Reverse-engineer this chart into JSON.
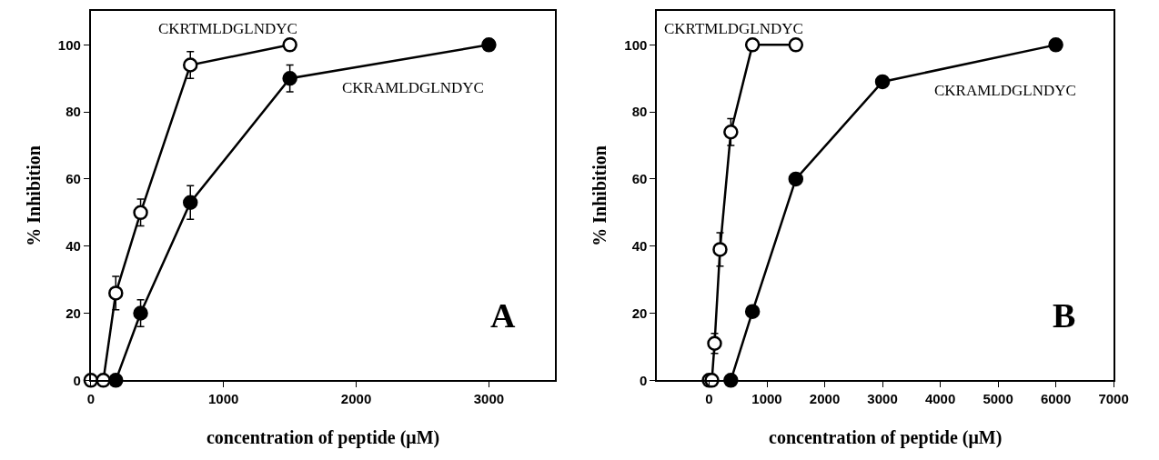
{
  "chart_data": [
    {
      "type": "line",
      "xlabel": "concentration of peptide (μM)",
      "ylabel": "% Inhibition",
      "xlim": [
        0,
        3500
      ],
      "xticks": [
        0,
        1000,
        2000,
        3000
      ],
      "ylim": [
        0,
        110
      ],
      "yticks": [
        0,
        20,
        40,
        60,
        80,
        100
      ],
      "legend": false,
      "marker": "circle",
      "annotations": [
        "A"
      ],
      "series": [
        {
          "name": "CKRTMLDGLNDYC",
          "color": "#000000",
          "x": [
            0,
            94,
            188,
            375,
            750,
            1500
          ],
          "values": [
            0,
            0,
            26,
            50,
            94,
            100
          ],
          "errors": [
            null,
            null,
            5,
            4,
            4,
            null
          ]
        },
        {
          "name": "CKRAMLDGLNDYC",
          "color": "#000000",
          "x": [
            188,
            375,
            750,
            1500,
            3000
          ],
          "values": [
            0,
            20,
            53,
            90,
            100
          ],
          "errors": [
            null,
            4,
            5,
            4,
            null
          ]
        }
      ]
    },
    {
      "type": "line",
      "xlabel": "concentration of peptide (μM)",
      "ylabel": "% Inhibition",
      "xlim": [
        -900,
        7000
      ],
      "xticks": [
        0,
        1000,
        2000,
        3000,
        4000,
        5000,
        6000,
        7000
      ],
      "ylim": [
        0,
        110
      ],
      "yticks": [
        0,
        20,
        40,
        60,
        80,
        100
      ],
      "legend": false,
      "marker": "circle",
      "annotations": [
        "B"
      ],
      "series": [
        {
          "name": "CKRTMLDGLNDYC",
          "color": "#000000",
          "x": [
            0,
            47,
            94,
            188,
            375,
            750,
            1500
          ],
          "values": [
            0,
            0,
            11,
            39,
            74,
            100,
            100
          ],
          "errors": [
            null,
            null,
            3,
            5,
            4,
            null,
            null
          ]
        },
        {
          "name": "CKRAMLDGLNDYC",
          "color": "#000000",
          "x": [
            375,
            750,
            1500,
            3000,
            6000
          ],
          "values": [
            0,
            20.5,
            60,
            89,
            100
          ]
        }
      ]
    }
  ]
}
